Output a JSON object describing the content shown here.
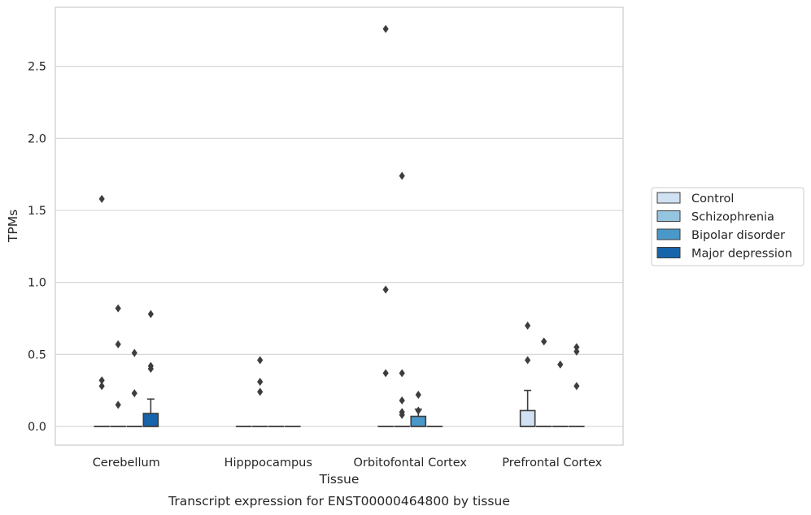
{
  "chart_data": {
    "type": "box",
    "xlabel": "Tissue",
    "ylabel": "TPMs",
    "caption": "Transcript expression for ENST00000464800 by tissue",
    "categories": [
      "Cerebellum",
      "Hipppocampus",
      "Orbitofontal Cortex",
      "Prefrontal Cortex"
    ],
    "ylim": [
      -0.13,
      2.91
    ],
    "yticks": [
      0.0,
      0.5,
      1.0,
      1.5,
      2.0,
      2.5
    ],
    "ytick_labels": [
      "0.0",
      "0.5",
      "1.0",
      "1.5",
      "2.0",
      "2.5"
    ],
    "grid": "horizontal",
    "legend_position": "right",
    "series": [
      {
        "name": "Control",
        "color": "#d0e1f2",
        "boxes": [
          {
            "q1": 0,
            "median": 0,
            "q3": 0,
            "whisker_low": 0,
            "whisker_high": 0,
            "outliers": [
              1.58,
              0.32,
              0.28
            ]
          },
          {
            "q1": 0,
            "median": 0,
            "q3": 0,
            "whisker_low": 0,
            "whisker_high": 0,
            "outliers": []
          },
          {
            "q1": 0,
            "median": 0,
            "q3": 0,
            "whisker_low": 0,
            "whisker_high": 0,
            "outliers": [
              2.76,
              0.95,
              0.37
            ]
          },
          {
            "q1": 0,
            "median": 0,
            "q3": 0.11,
            "whisker_low": 0,
            "whisker_high": 0.25,
            "outliers": [
              0.7,
              0.46
            ]
          }
        ]
      },
      {
        "name": "Schizophrenia",
        "color": "#94c4df",
        "boxes": [
          {
            "q1": 0,
            "median": 0,
            "q3": 0,
            "whisker_low": 0,
            "whisker_high": 0,
            "outliers": [
              0.82,
              0.57,
              0.15
            ]
          },
          {
            "q1": 0,
            "median": 0,
            "q3": 0,
            "whisker_low": 0,
            "whisker_high": 0,
            "outliers": [
              0.46,
              0.31,
              0.24
            ]
          },
          {
            "q1": 0,
            "median": 0,
            "q3": 0,
            "whisker_low": 0,
            "whisker_high": 0,
            "outliers": [
              1.74,
              0.37,
              0.18,
              0.1,
              0.08
            ]
          },
          {
            "q1": 0,
            "median": 0,
            "q3": 0,
            "whisker_low": 0,
            "whisker_high": 0,
            "outliers": [
              0.59
            ]
          }
        ]
      },
      {
        "name": "Bipolar disorder",
        "color": "#4a98c9",
        "boxes": [
          {
            "q1": 0,
            "median": 0,
            "q3": 0,
            "whisker_low": 0,
            "whisker_high": 0,
            "outliers": [
              0.51,
              0.23
            ]
          },
          {
            "q1": 0,
            "median": 0,
            "q3": 0,
            "whisker_low": 0,
            "whisker_high": 0,
            "outliers": []
          },
          {
            "q1": 0,
            "median": 0,
            "q3": 0.07,
            "whisker_low": 0,
            "whisker_high": 0.12,
            "outliers": [
              0.22,
              0.11
            ]
          },
          {
            "q1": 0,
            "median": 0,
            "q3": 0,
            "whisker_low": 0,
            "whisker_high": 0,
            "outliers": [
              0.43
            ]
          }
        ]
      },
      {
        "name": "Major depression",
        "color": "#1764ab",
        "boxes": [
          {
            "q1": 0,
            "median": 0,
            "q3": 0.09,
            "whisker_low": 0,
            "whisker_high": 0.19,
            "outliers": [
              0.78,
              0.42,
              0.4
            ]
          },
          {
            "q1": 0,
            "median": 0,
            "q3": 0,
            "whisker_low": 0,
            "whisker_high": 0,
            "outliers": []
          },
          {
            "q1": 0,
            "median": 0,
            "q3": 0,
            "whisker_low": 0,
            "whisker_high": 0,
            "outliers": []
          },
          {
            "q1": 0,
            "median": 0,
            "q3": 0,
            "whisker_low": 0,
            "whisker_high": 0,
            "outliers": [
              0.55,
              0.52,
              0.28
            ]
          }
        ]
      }
    ],
    "style": {
      "box_edge_color": "#3d3d3d",
      "grid_color": "#d3d3d3",
      "frame_color": "#cccccc"
    }
  }
}
